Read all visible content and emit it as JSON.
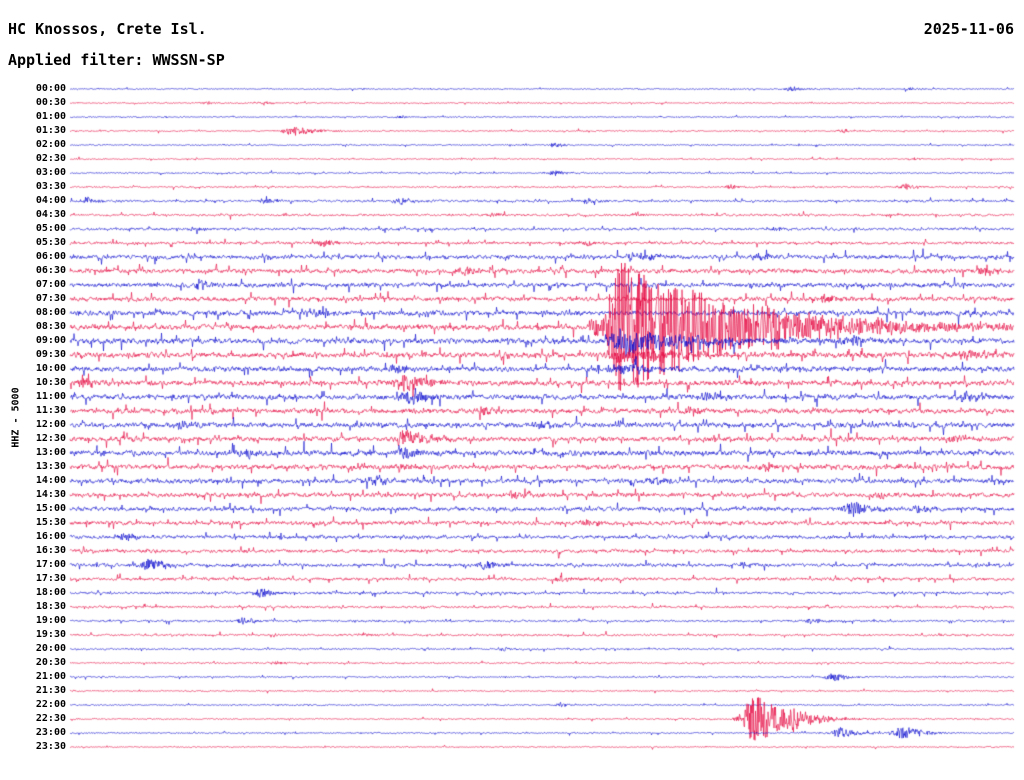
{
  "header": {
    "station": "HC Knossos, Crete Isl.",
    "date": "2025-11-06",
    "filter": "Applied filter: WWSSN-SP"
  },
  "y_axis_label": "HHZ - 5000",
  "chart_data": {
    "type": "line",
    "subtype": "seismogram-helicorder",
    "title": "HC Knossos, Crete Isl.",
    "subtitle": "Applied filter: WWSSN-SP",
    "date": "2025-11-06",
    "channel_scale": "HHZ - 5000",
    "minutes_per_row": 30,
    "row_count": 48,
    "legend_position": "none",
    "grid": false,
    "colors": {
      "blue": "#0000cc",
      "red": "#e4003c",
      "text": "#000000",
      "background": "#ffffff"
    },
    "notable_events": [
      {
        "row": "08:30",
        "pos": 0.585,
        "description": "large earthquake signal with long red coda, clipped amplitude spanning several rows"
      },
      {
        "row": "22:30",
        "pos": 0.726,
        "description": "small local event, red spindle-shaped burst"
      },
      {
        "row": "23:00",
        "pos": 0.885,
        "description": "pair of small blue bursts"
      },
      {
        "row": "01:30",
        "pos": 0.238,
        "description": "minor red burst"
      },
      {
        "row": "12:30",
        "pos": 0.355,
        "description": "tall narrow red spike"
      }
    ],
    "rows": [
      {
        "label": "00:00",
        "color": "blue",
        "amp": 0.8,
        "spiky": 0.2,
        "events": [
          {
            "pos": 0.765,
            "amp": 2.5,
            "rise": 5,
            "decay": 12
          },
          {
            "pos": 0.89,
            "amp": 2.0,
            "rise": 4,
            "decay": 10
          }
        ]
      },
      {
        "label": "00:30",
        "color": "red",
        "amp": 0.8,
        "spiky": 0.2,
        "events": [
          {
            "pos": 0.145,
            "amp": 1.8,
            "rise": 4,
            "decay": 8
          },
          {
            "pos": 0.205,
            "amp": 1.8,
            "rise": 4,
            "decay": 8
          }
        ]
      },
      {
        "label": "01:00",
        "color": "blue",
        "amp": 0.8,
        "spiky": 0.2,
        "events": [
          {
            "pos": 0.35,
            "amp": 1.5,
            "rise": 4,
            "decay": 8
          }
        ]
      },
      {
        "label": "01:30",
        "color": "red",
        "amp": 0.8,
        "spiky": 0.2,
        "events": [
          {
            "pos": 0.238,
            "amp": 4.5,
            "rise": 8,
            "decay": 20
          },
          {
            "pos": 0.82,
            "amp": 2.0,
            "rise": 4,
            "decay": 10
          }
        ]
      },
      {
        "label": "02:00",
        "color": "blue",
        "amp": 0.85,
        "spiky": 0.25,
        "events": [
          {
            "pos": 0.515,
            "amp": 2.5,
            "rise": 5,
            "decay": 10
          }
        ]
      },
      {
        "label": "02:30",
        "color": "red",
        "amp": 0.8,
        "spiky": 0.2,
        "events": [
          {
            "pos": 0.89,
            "amp": 1.8,
            "rise": 3,
            "decay": 8
          }
        ]
      },
      {
        "label": "03:00",
        "color": "blue",
        "amp": 0.9,
        "spiky": 0.25,
        "events": [
          {
            "pos": 0.515,
            "amp": 3.0,
            "rise": 5,
            "decay": 12
          }
        ]
      },
      {
        "label": "03:30",
        "color": "red",
        "amp": 1.0,
        "spiky": 0.3,
        "events": [
          {
            "pos": 0.7,
            "amp": 2.5,
            "rise": 4,
            "decay": 10
          },
          {
            "pos": 0.885,
            "amp": 3.0,
            "rise": 5,
            "decay": 12
          }
        ]
      },
      {
        "label": "04:00",
        "color": "blue",
        "amp": 1.5,
        "spiky": 0.5,
        "events": [
          {
            "pos": 0.02,
            "amp": 3.0,
            "rise": 5,
            "decay": 12
          },
          {
            "pos": 0.21,
            "amp": 2.5,
            "rise": 5,
            "decay": 10
          },
          {
            "pos": 0.35,
            "amp": 3.0,
            "rise": 5,
            "decay": 12
          },
          {
            "pos": 0.55,
            "amp": 2.5,
            "rise": 5,
            "decay": 10
          }
        ]
      },
      {
        "label": "04:30",
        "color": "red",
        "amp": 1.5,
        "spiky": 0.4,
        "events": [
          {
            "pos": 0.45,
            "amp": 2.5,
            "rise": 5,
            "decay": 10
          },
          {
            "pos": 0.6,
            "amp": 2.0,
            "rise": 4,
            "decay": 8
          }
        ]
      },
      {
        "label": "05:00",
        "color": "blue",
        "amp": 1.7,
        "spiky": 0.5,
        "events": [
          {
            "pos": 0.13,
            "amp": 2.5,
            "rise": 5,
            "decay": 10
          },
          {
            "pos": 0.75,
            "amp": 2.5,
            "rise": 5,
            "decay": 10
          }
        ]
      },
      {
        "label": "05:30",
        "color": "red",
        "amp": 1.9,
        "spiky": 0.5,
        "events": [
          {
            "pos": 0.27,
            "amp": 3.0,
            "rise": 6,
            "decay": 12
          },
          {
            "pos": 0.55,
            "amp": 3.0,
            "rise": 6,
            "decay": 12
          }
        ]
      },
      {
        "label": "06:00",
        "color": "blue",
        "amp": 2.8,
        "spiky": 0.7,
        "events": [
          {
            "pos": 0.6,
            "amp": 4.0,
            "rise": 8,
            "decay": 20
          },
          {
            "pos": 0.73,
            "amp": 3.0,
            "rise": 6,
            "decay": 14
          }
        ]
      },
      {
        "label": "06:30",
        "color": "red",
        "amp": 3.0,
        "spiky": 0.7,
        "events": [
          {
            "pos": 0.42,
            "amp": 3.5,
            "rise": 7,
            "decay": 15
          },
          {
            "pos": 0.97,
            "amp": 4.0,
            "rise": 7,
            "decay": 15
          }
        ]
      },
      {
        "label": "07:00",
        "color": "blue",
        "amp": 3.1,
        "spiky": 0.75,
        "events": [
          {
            "pos": 0.14,
            "amp": 4.0,
            "rise": 8,
            "decay": 16
          }
        ]
      },
      {
        "label": "07:30",
        "color": "red",
        "amp": 3.1,
        "spiky": 0.75,
        "events": [
          {
            "pos": 0.8,
            "amp": 4.0,
            "rise": 8,
            "decay": 16
          }
        ]
      },
      {
        "label": "08:00",
        "color": "blue",
        "amp": 3.4,
        "spiky": 0.8,
        "events": [
          {
            "pos": 0.265,
            "amp": 4.0,
            "rise": 8,
            "decay": 16
          }
        ]
      },
      {
        "label": "08:30",
        "color": "red",
        "amp": 3.6,
        "spiky": 0.8,
        "events": [
          {
            "pos": 0.555,
            "amp": 8,
            "rise": 5,
            "decay": 20
          },
          {
            "pos": 0.585,
            "amp": 70,
            "rise": 10,
            "decay": 110
          },
          {
            "pos": 0.75,
            "amp": 6,
            "rise": 20,
            "decay": 60
          }
        ]
      },
      {
        "label": "09:00",
        "color": "blue",
        "amp": 3.6,
        "spiky": 0.8,
        "events": [
          {
            "pos": 0.585,
            "amp": 14,
            "rise": 8,
            "decay": 60
          },
          {
            "pos": 0.83,
            "amp": 5,
            "rise": 8,
            "decay": 20
          }
        ]
      },
      {
        "label": "09:30",
        "color": "red",
        "amp": 3.6,
        "spiky": 0.8,
        "events": [
          {
            "pos": 0.585,
            "amp": 8,
            "rise": 10,
            "decay": 60
          },
          {
            "pos": 0.95,
            "amp": 5,
            "rise": 8,
            "decay": 20
          }
        ]
      },
      {
        "label": "10:00",
        "color": "blue",
        "amp": 3.5,
        "spiky": 0.8,
        "events": [
          {
            "pos": 0.585,
            "amp": 5,
            "rise": 10,
            "decay": 40
          },
          {
            "pos": 0.345,
            "amp": 4,
            "rise": 7,
            "decay": 14
          }
        ]
      },
      {
        "label": "10:30",
        "color": "red",
        "amp": 3.5,
        "spiky": 0.8,
        "events": [
          {
            "pos": 0.355,
            "amp": 9,
            "rise": 8,
            "decay": 25
          },
          {
            "pos": 0.015,
            "amp": 5,
            "rise": 6,
            "decay": 14
          }
        ]
      },
      {
        "label": "11:00",
        "color": "blue",
        "amp": 3.5,
        "spiky": 0.8,
        "events": [
          {
            "pos": 0.36,
            "amp": 7,
            "rise": 8,
            "decay": 20
          },
          {
            "pos": 0.68,
            "amp": 4,
            "rise": 6,
            "decay": 14
          },
          {
            "pos": 0.95,
            "amp": 5,
            "rise": 6,
            "decay": 14
          }
        ]
      },
      {
        "label": "11:30",
        "color": "red",
        "amp": 3.4,
        "spiky": 0.8,
        "events": [
          {
            "pos": 0.44,
            "amp": 4,
            "rise": 7,
            "decay": 14
          },
          {
            "pos": 0.66,
            "amp": 4,
            "rise": 6,
            "decay": 12
          }
        ]
      },
      {
        "label": "12:00",
        "color": "blue",
        "amp": 3.4,
        "spiky": 0.8,
        "events": [
          {
            "pos": 0.12,
            "amp": 4,
            "rise": 7,
            "decay": 14
          },
          {
            "pos": 0.5,
            "amp": 4,
            "rise": 6,
            "decay": 12
          }
        ]
      },
      {
        "label": "12:30",
        "color": "red",
        "amp": 3.4,
        "spiky": 0.8,
        "events": [
          {
            "pos": 0.355,
            "amp": 10,
            "rise": 6,
            "decay": 18
          },
          {
            "pos": 0.94,
            "amp": 4,
            "rise": 6,
            "decay": 12
          }
        ]
      },
      {
        "label": "13:00",
        "color": "blue",
        "amp": 3.5,
        "spiky": 0.8,
        "events": [
          {
            "pos": 0.355,
            "amp": 6,
            "rise": 6,
            "decay": 15
          },
          {
            "pos": 0.19,
            "amp": 4,
            "rise": 6,
            "decay": 12
          }
        ]
      },
      {
        "label": "13:30",
        "color": "red",
        "amp": 3.3,
        "spiky": 0.8,
        "events": [
          {
            "pos": 0.35,
            "amp": 4,
            "rise": 6,
            "decay": 12
          },
          {
            "pos": 0.74,
            "amp": 4,
            "rise": 6,
            "decay": 12
          }
        ]
      },
      {
        "label": "14:00",
        "color": "blue",
        "amp": 3.1,
        "spiky": 0.75,
        "events": [
          {
            "pos": 0.325,
            "amp": 5,
            "rise": 7,
            "decay": 14
          },
          {
            "pos": 0.62,
            "amp": 4,
            "rise": 6,
            "decay": 12
          }
        ]
      },
      {
        "label": "14:30",
        "color": "red",
        "amp": 3.0,
        "spiky": 0.7,
        "events": [
          {
            "pos": 0.47,
            "amp": 4,
            "rise": 6,
            "decay": 12
          },
          {
            "pos": 0.86,
            "amp": 4,
            "rise": 6,
            "decay": 12
          }
        ]
      },
      {
        "label": "15:00",
        "color": "blue",
        "amp": 2.8,
        "spiky": 0.7,
        "events": [
          {
            "pos": 0.832,
            "amp": 7,
            "rise": 9,
            "decay": 18
          },
          {
            "pos": 0.9,
            "amp": 4,
            "rise": 6,
            "decay": 12
          }
        ]
      },
      {
        "label": "15:30",
        "color": "red",
        "amp": 2.8,
        "spiky": 0.65,
        "events": [
          {
            "pos": 0.55,
            "amp": 3.5,
            "rise": 6,
            "decay": 12
          }
        ]
      },
      {
        "label": "16:00",
        "color": "blue",
        "amp": 2.4,
        "spiky": 0.6,
        "events": [
          {
            "pos": 0.058,
            "amp": 5,
            "rise": 6,
            "decay": 14
          }
        ]
      },
      {
        "label": "16:30",
        "color": "red",
        "amp": 2.3,
        "spiky": 0.55,
        "events": []
      },
      {
        "label": "17:00",
        "color": "blue",
        "amp": 2.3,
        "spiky": 0.6,
        "events": [
          {
            "pos": 0.085,
            "amp": 6,
            "rise": 7,
            "decay": 16
          },
          {
            "pos": 0.44,
            "amp": 4,
            "rise": 6,
            "decay": 12
          }
        ]
      },
      {
        "label": "17:30",
        "color": "red",
        "amp": 2.1,
        "spiky": 0.5,
        "events": [
          {
            "pos": 0.52,
            "amp": 3,
            "rise": 5,
            "decay": 10
          }
        ]
      },
      {
        "label": "18:00",
        "color": "blue",
        "amp": 1.7,
        "spiky": 0.45,
        "events": [
          {
            "pos": 0.204,
            "amp": 5,
            "rise": 5,
            "decay": 12
          }
        ]
      },
      {
        "label": "18:30",
        "color": "red",
        "amp": 1.5,
        "spiky": 0.4,
        "events": []
      },
      {
        "label": "19:00",
        "color": "blue",
        "amp": 1.4,
        "spiky": 0.4,
        "events": [
          {
            "pos": 0.185,
            "amp": 4,
            "rise": 5,
            "decay": 10
          },
          {
            "pos": 0.786,
            "amp": 3.5,
            "rise": 5,
            "decay": 10
          }
        ]
      },
      {
        "label": "19:30",
        "color": "red",
        "amp": 1.3,
        "spiky": 0.35,
        "events": [
          {
            "pos": 0.31,
            "amp": 2,
            "rise": 4,
            "decay": 8
          }
        ]
      },
      {
        "label": "20:00",
        "color": "blue",
        "amp": 1.1,
        "spiky": 0.3,
        "events": [
          {
            "pos": 0.46,
            "amp": 2,
            "rise": 4,
            "decay": 8
          }
        ]
      },
      {
        "label": "20:30",
        "color": "red",
        "amp": 1.0,
        "spiky": 0.3,
        "events": [
          {
            "pos": 0.22,
            "amp": 1.8,
            "rise": 4,
            "decay": 8
          }
        ]
      },
      {
        "label": "21:00",
        "color": "blue",
        "amp": 1.0,
        "spiky": 0.3,
        "events": [
          {
            "pos": 0.81,
            "amp": 4.5,
            "rise": 6,
            "decay": 12
          }
        ]
      },
      {
        "label": "21:30",
        "color": "red",
        "amp": 0.9,
        "spiky": 0.25,
        "events": []
      },
      {
        "label": "22:00",
        "color": "blue",
        "amp": 0.9,
        "spiky": 0.25,
        "events": [
          {
            "pos": 0.52,
            "amp": 2,
            "rise": 4,
            "decay": 8
          }
        ]
      },
      {
        "label": "22:30",
        "color": "red",
        "amp": 0.9,
        "spiky": 0.25,
        "events": [
          {
            "pos": 0.726,
            "amp": 27,
            "rise": 9,
            "decay": 30
          },
          {
            "pos": 0.77,
            "amp": 7,
            "rise": 8,
            "decay": 18
          }
        ]
      },
      {
        "label": "23:00",
        "color": "blue",
        "amp": 0.9,
        "spiky": 0.25,
        "events": [
          {
            "pos": 0.816,
            "amp": 6,
            "rise": 5,
            "decay": 14
          },
          {
            "pos": 0.885,
            "amp": 7,
            "rise": 9,
            "decay": 18
          }
        ]
      },
      {
        "label": "23:30",
        "color": "red",
        "amp": 0.8,
        "spiky": 0.2,
        "events": []
      }
    ]
  }
}
